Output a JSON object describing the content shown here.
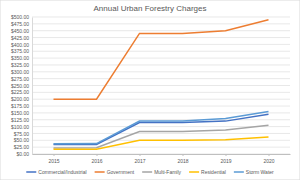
{
  "chart_data": {
    "type": "line",
    "title": "Annual Urban Forestry Charges",
    "categories": [
      "2015",
      "2016",
      "2017",
      "2018",
      "2019",
      "2020"
    ],
    "series": [
      {
        "name": "Commercial/Industrial",
        "color": "#4472c4",
        "values": [
          35,
          35,
          115,
          115,
          120,
          145
        ]
      },
      {
        "name": "Government",
        "color": "#ed7d31",
        "values": [
          200,
          200,
          440,
          440,
          450,
          490
        ]
      },
      {
        "name": "Multi-Family",
        "color": "#a5a5a5",
        "values": [
          22,
          23,
          82,
          82,
          88,
          105
        ]
      },
      {
        "name": "Residential",
        "color": "#ffc000",
        "values": [
          17,
          17,
          50,
          50,
          52,
          62
        ]
      },
      {
        "name": "Storm Water",
        "color": "#5b9bd5",
        "values": [
          37,
          38,
          120,
          120,
          130,
          155
        ]
      }
    ],
    "ylim": [
      0,
      500
    ],
    "yticks": [
      {
        "value": 0,
        "label": "$0.00"
      },
      {
        "value": 25,
        "label": "$25.00"
      },
      {
        "value": 50,
        "label": "$50.00"
      },
      {
        "value": 75,
        "label": "$75.00"
      },
      {
        "value": 100,
        "label": "$100.00"
      },
      {
        "value": 125,
        "label": "$125.00"
      },
      {
        "value": 150,
        "label": "$150.00"
      },
      {
        "value": 175,
        "label": "$175.00"
      },
      {
        "value": 200,
        "label": "$200.00"
      },
      {
        "value": 225,
        "label": "$225.00"
      },
      {
        "value": 250,
        "label": "$250.00"
      },
      {
        "value": 275,
        "label": "$275.00"
      },
      {
        "value": 300,
        "label": "$300.00"
      },
      {
        "value": 325,
        "label": "$325.00"
      },
      {
        "value": 350,
        "label": "$350.00"
      },
      {
        "value": 375,
        "label": "$375.00"
      },
      {
        "value": 400,
        "label": "$400.00"
      },
      {
        "value": 425,
        "label": "$425.00"
      },
      {
        "value": 450,
        "label": "$450.00"
      },
      {
        "value": 475,
        "label": "$475.00"
      },
      {
        "value": 500,
        "label": "$500.00"
      }
    ],
    "grid": true,
    "legend": "bottom"
  }
}
